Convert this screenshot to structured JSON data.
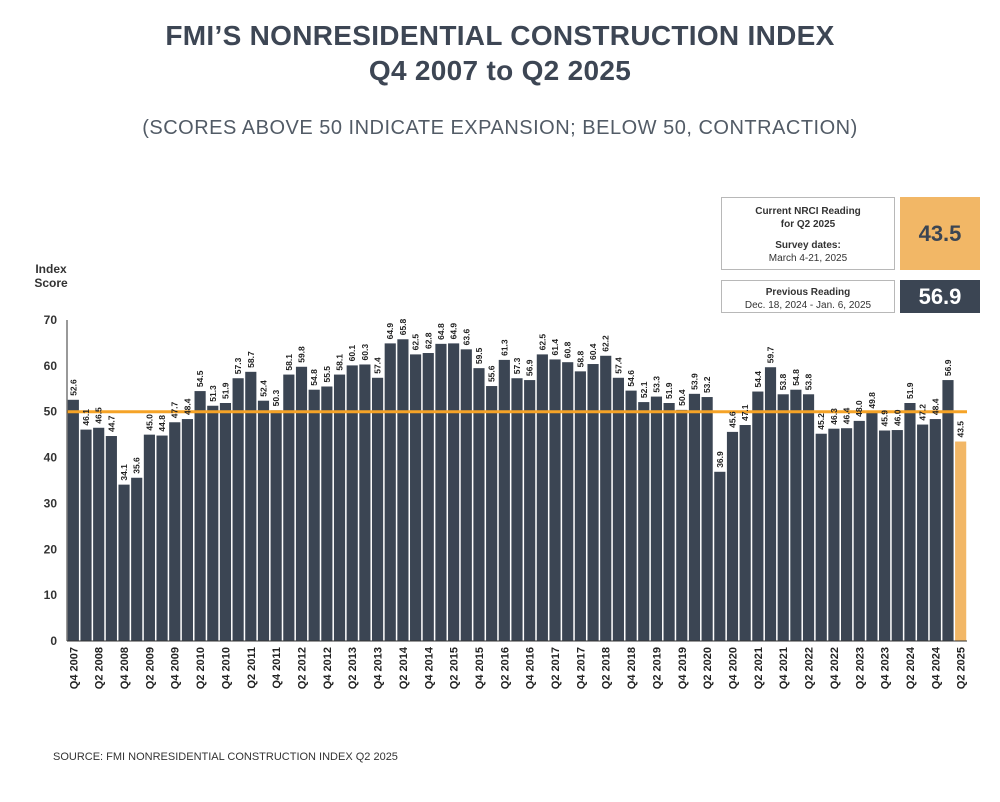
{
  "title_line1": "FMI’S NONRESIDENTIAL CONSTRUCTION INDEX",
  "title_line2": "Q4 2007 to Q2 2025",
  "subtitle": "(SCORES ABOVE 50 INDICATE EXPANSION; BELOW 50, CONTRACTION)",
  "current": {
    "line1": "Current NRCI Reading",
    "line2": "for Q2 2025",
    "line3": "Survey dates:",
    "line4": "March 4-21, 2025",
    "value": "43.5"
  },
  "previous": {
    "line1": "Previous Reading",
    "line2": "Dec. 18, 2024 - Jan. 6, 2025",
    "value": "56.9"
  },
  "source": "SOURCE: FMI NONRESIDENTIAL CONSTRUCTION INDEX Q2 2025",
  "colors": {
    "bar": "#3b4553",
    "highlight": "#f2b766",
    "line": "#f5a327"
  },
  "chart_data": {
    "type": "bar",
    "ylabel_line1": "Index",
    "ylabel_line2": "Score",
    "ylim": [
      0,
      70
    ],
    "yticks": [
      0,
      10,
      20,
      30,
      40,
      50,
      60,
      70
    ],
    "reference_line": 50,
    "categories": [
      "Q4 2007",
      "Q1 2008",
      "Q2 2008",
      "Q3 2008",
      "Q4 2008",
      "Q1 2009",
      "Q2 2009",
      "Q3 2009",
      "Q4 2009",
      "Q1 2010",
      "Q2 2010",
      "Q3 2010",
      "Q4 2010",
      "Q1 2011",
      "Q2 2011",
      "Q3 2011",
      "Q4 2011",
      "Q1 2012",
      "Q2 2012",
      "Q3 2012",
      "Q4 2012",
      "Q1 2013",
      "Q2 2013",
      "Q3 2013",
      "Q4 2013",
      "Q1 2014",
      "Q2 2014",
      "Q3 2014",
      "Q4 2014",
      "Q1 2015",
      "Q2 2015",
      "Q3 2015",
      "Q4 2015",
      "Q1 2016",
      "Q2 2016",
      "Q3 2016",
      "Q4 2016",
      "Q1 2017",
      "Q2 2017",
      "Q3 2017",
      "Q4 2017",
      "Q1 2018",
      "Q2 2018",
      "Q3 2018",
      "Q4 2018",
      "Q1 2019",
      "Q2 2019",
      "Q3 2019",
      "Q4 2019",
      "Q1 2020",
      "Q2 2020",
      "Q3 2020",
      "Q4 2020",
      "Q1 2021",
      "Q2 2021",
      "Q3 2021",
      "Q4 2021",
      "Q1 2022",
      "Q2 2022",
      "Q3 2022",
      "Q4 2022",
      "Q1 2023",
      "Q2 2023",
      "Q3 2023",
      "Q4 2023",
      "Q1 2024",
      "Q2 2024",
      "Q3 2024",
      "Q4 2024",
      "Q1 2025",
      "Q2 2025"
    ],
    "values": [
      52.6,
      46.1,
      46.5,
      44.7,
      34.1,
      35.6,
      45.0,
      44.8,
      47.7,
      48.4,
      54.5,
      51.3,
      51.9,
      57.3,
      58.7,
      52.4,
      50.3,
      58.1,
      59.8,
      54.8,
      55.5,
      58.1,
      60.1,
      60.3,
      57.4,
      64.9,
      65.8,
      62.5,
      62.8,
      64.8,
      64.9,
      63.6,
      59.5,
      55.6,
      61.3,
      57.3,
      56.9,
      62.5,
      61.4,
      60.8,
      58.8,
      60.4,
      62.2,
      57.4,
      54.6,
      52.1,
      53.3,
      51.9,
      50.4,
      53.9,
      53.2,
      36.9,
      45.6,
      47.1,
      54.4,
      59.7,
      53.8,
      54.8,
      53.8,
      45.2,
      46.3,
      46.4,
      48.0,
      49.8,
      45.9,
      46.0,
      51.9,
      47.2,
      48.4,
      56.9,
      43.5
    ],
    "x_tick_labels": [
      "Q4 2007",
      "",
      "Q2 2008",
      "",
      "Q4 2008",
      "",
      "Q2 2009",
      "",
      "Q4 2009",
      "",
      "Q2 2010",
      "",
      "Q4 2010",
      "",
      "Q2 2011",
      "",
      "Q4 2011",
      "",
      "Q2 2012",
      "",
      "Q4 2012",
      "",
      "Q2 2013",
      "",
      "Q4 2013",
      "",
      "Q2 2014",
      "",
      "Q4 2014",
      "",
      "Q2 2015",
      "",
      "Q4 2015",
      "",
      "Q2 2016",
      "",
      "Q4 2016",
      "",
      "Q2 2017",
      "",
      "Q4 2017",
      "",
      "Q2 2018",
      "",
      "Q4 2018",
      "",
      "Q2 2019",
      "",
      "Q4 2019",
      "",
      "Q2 2020",
      "",
      "Q4 2020",
      "",
      "Q2 2021",
      "",
      "Q4 2021",
      "",
      "Q2 2022",
      "",
      "Q4 2022",
      "",
      "Q2 2023",
      "",
      "Q4 2023",
      "",
      "Q2 2024",
      "",
      "Q4 2024",
      "",
      "Q2 2025"
    ],
    "highlight_index": 70
  }
}
